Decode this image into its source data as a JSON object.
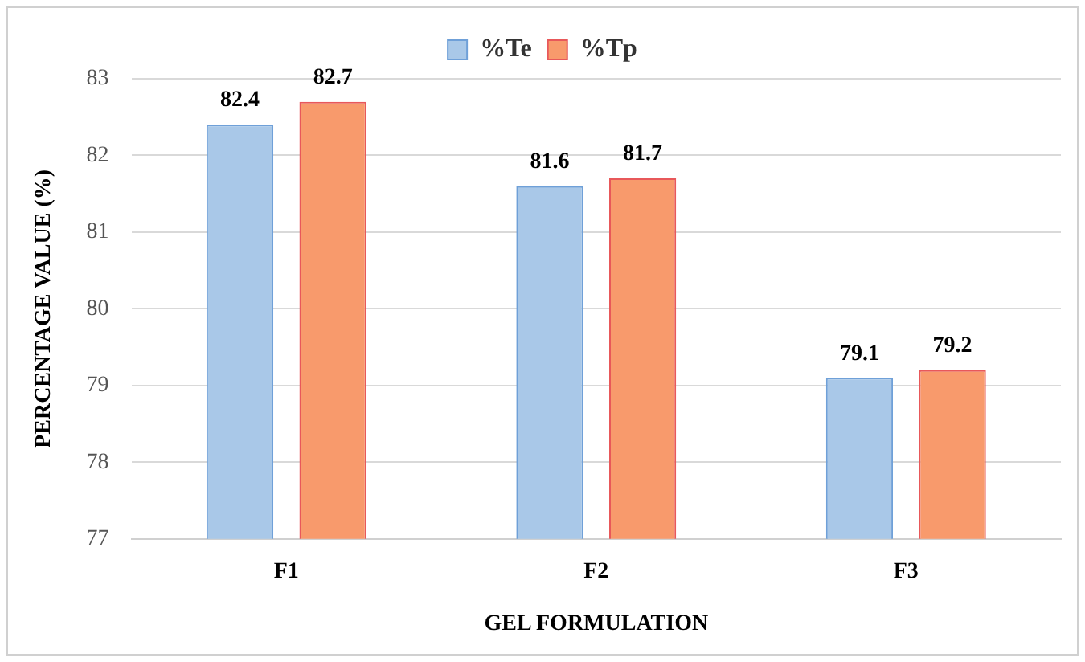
{
  "chart_data": {
    "type": "bar",
    "xlabel": "GEL FORMULATION",
    "ylabel": "PERCENTAGE VALUE (%)",
    "categories": [
      "F1",
      "F2",
      "F3"
    ],
    "series": [
      {
        "name": "%Te",
        "color": "#a9c8e8",
        "values": [
          82.4,
          81.6,
          79.1
        ]
      },
      {
        "name": "%Tp",
        "color": "#f89a6c",
        "values": [
          82.7,
          81.7,
          79.2
        ]
      }
    ],
    "ylim": [
      77,
      83
    ],
    "yticks": [
      77,
      78,
      79,
      80,
      81,
      82,
      83
    ],
    "grid": "y",
    "legend": "top",
    "data_labels": true
  }
}
